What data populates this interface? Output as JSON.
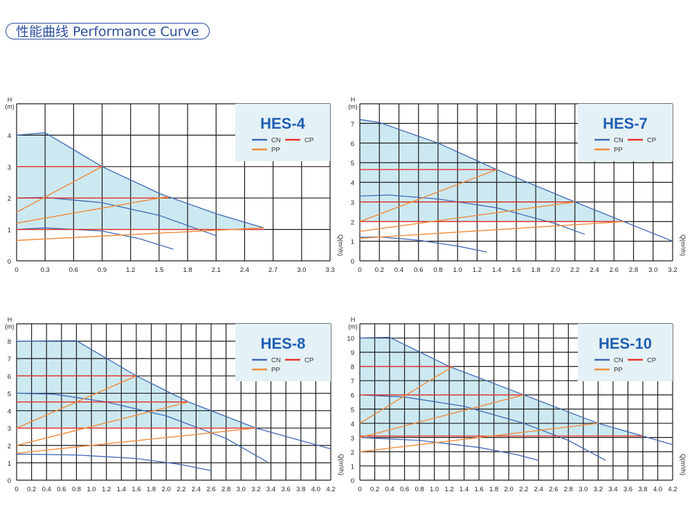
{
  "header": {
    "title": "性能曲线 Performance Curve"
  },
  "colors": {
    "CN": "#3f67b5",
    "CP": "#e8342b",
    "PP": "#f08a3a",
    "area": "#bfe3ee",
    "legend_bg": "#e4f1f6",
    "title": "#1f5fb3"
  },
  "chart_data": [
    {
      "type": "line",
      "title": "HES-4",
      "xlabel": "Q(m³/h)",
      "ylabel": "H (m)",
      "xlim": [
        0,
        3.3
      ],
      "ylim": [
        0,
        5
      ],
      "xticks": [
        "0",
        "0.3",
        "0.6",
        "0.9",
        "1.2",
        "1.5",
        "1.8",
        "2.1",
        "2.4",
        "2.7",
        "3.0",
        "3.3"
      ],
      "yticks": [
        "0",
        "1",
        "2",
        "3",
        "4"
      ],
      "legend": [
        "CN",
        "CP",
        "PP"
      ],
      "legend_position": "top-right",
      "grid": true,
      "series": [
        {
          "name": "CN",
          "x": [
            0,
            0.3,
            0.9,
            1.5,
            2.1,
            2.6
          ],
          "y": [
            4,
            4.08,
            3,
            2.15,
            1.5,
            1.05
          ]
        },
        {
          "name": "CN",
          "x": [
            0,
            0.3,
            0.9,
            1.5,
            2.1
          ],
          "y": [
            2,
            2.02,
            1.85,
            1.45,
            0.8
          ]
        },
        {
          "name": "CN",
          "x": [
            0,
            0.3,
            0.9,
            1.3,
            1.65
          ],
          "y": [
            1,
            1.05,
            0.95,
            0.7,
            0.37
          ]
        },
        {
          "name": "CP",
          "x": [
            0,
            0.9
          ],
          "y": [
            3,
            3
          ]
        },
        {
          "name": "CP",
          "x": [
            0,
            1.6
          ],
          "y": [
            2,
            2
          ]
        },
        {
          "name": "CP",
          "x": [
            0,
            2.6
          ],
          "y": [
            1,
            1
          ]
        },
        {
          "name": "PP",
          "x": [
            0,
            0.9
          ],
          "y": [
            1.55,
            3
          ]
        },
        {
          "name": "PP",
          "x": [
            0,
            1.6
          ],
          "y": [
            1.2,
            2.05
          ]
        },
        {
          "name": "PP",
          "x": [
            0,
            2.6
          ],
          "y": [
            0.65,
            1.05
          ]
        }
      ]
    },
    {
      "type": "line",
      "title": "HES-7",
      "xlabel": "Q(m³/h)",
      "ylabel": "H (m)",
      "xlim": [
        0,
        3.2
      ],
      "ylim": [
        0,
        8
      ],
      "xticks": [
        "0",
        "0.2",
        "0.4",
        "0.6",
        "0.8",
        "1.0",
        "1.2",
        "1.4",
        "1.6",
        "1.8",
        "2.0",
        "2.2",
        "2.4",
        "2.6",
        "2.8",
        "3.0",
        "3.2"
      ],
      "yticks": [
        "0",
        "1",
        "2",
        "3",
        "4",
        "5",
        "6",
        "7"
      ],
      "legend": [
        "CN",
        "CP",
        "PP"
      ],
      "legend_position": "top-right",
      "grid": true,
      "series": [
        {
          "name": "CN",
          "x": [
            0,
            0.2,
            0.8,
            1.4,
            2.2,
            2.7,
            3.2
          ],
          "y": [
            7.2,
            7.05,
            6,
            4.65,
            3,
            2,
            1
          ]
        },
        {
          "name": "CN",
          "x": [
            0,
            0.3,
            0.8,
            1.4,
            2.0,
            2.3
          ],
          "y": [
            3.3,
            3.35,
            3.15,
            2.7,
            1.9,
            1.35
          ]
        },
        {
          "name": "CN",
          "x": [
            0,
            0.2,
            0.6,
            1.0,
            1.3
          ],
          "y": [
            1.2,
            1.22,
            1.05,
            0.75,
            0.45
          ]
        },
        {
          "name": "CP",
          "x": [
            0,
            1.4
          ],
          "y": [
            4.65,
            4.65
          ]
        },
        {
          "name": "CP",
          "x": [
            0,
            2.2
          ],
          "y": [
            3,
            3
          ]
        },
        {
          "name": "CP",
          "x": [
            0,
            2.7
          ],
          "y": [
            2,
            2
          ]
        },
        {
          "name": "PP",
          "x": [
            0,
            1.4
          ],
          "y": [
            2,
            4.65
          ]
        },
        {
          "name": "PP",
          "x": [
            0,
            2.2
          ],
          "y": [
            1.5,
            3
          ]
        },
        {
          "name": "PP",
          "x": [
            0,
            2.7
          ],
          "y": [
            1.15,
            2
          ]
        }
      ]
    },
    {
      "type": "line",
      "title": "HES-8",
      "xlabel": "Q(m³/h)",
      "ylabel": "H (m)",
      "xlim": [
        0,
        4.2
      ],
      "ylim": [
        0,
        9
      ],
      "xticks": [
        "0",
        "0.2",
        "0.4",
        "0.6",
        "0.8",
        "1.0",
        "1.2",
        "1.4",
        "1.6",
        "1.8",
        "2.0",
        "2.2",
        "2.4",
        "2.6",
        "2.8",
        "3.0",
        "3.2",
        "3.4",
        "3.6",
        "3.8",
        "4.0",
        "4.2"
      ],
      "yticks": [
        "0",
        "1",
        "2",
        "3",
        "4",
        "5",
        "6",
        "7",
        "8"
      ],
      "legend": [
        "CN",
        "CP",
        "PP"
      ],
      "legend_position": "top-right",
      "grid": true,
      "series": [
        {
          "name": "CN",
          "x": [
            0,
            0.8,
            1.6,
            2.3,
            3.2,
            4.2
          ],
          "y": [
            8,
            8.03,
            6,
            4.5,
            3,
            1.8
          ]
        },
        {
          "name": "CN",
          "x": [
            0,
            0.5,
            1.2,
            2.0,
            2.8,
            3.35
          ],
          "y": [
            5,
            4.95,
            4.5,
            3.7,
            2.4,
            1.05
          ]
        },
        {
          "name": "CN",
          "x": [
            0,
            0.8,
            1.6,
            2.2,
            2.6
          ],
          "y": [
            1.5,
            1.45,
            1.25,
            0.9,
            0.55
          ]
        },
        {
          "name": "CP",
          "x": [
            0,
            1.6
          ],
          "y": [
            6,
            6
          ]
        },
        {
          "name": "CP",
          "x": [
            0,
            2.3
          ],
          "y": [
            4.5,
            4.5
          ]
        },
        {
          "name": "CP",
          "x": [
            0,
            3.2
          ],
          "y": [
            3,
            3
          ]
        },
        {
          "name": "PP",
          "x": [
            0,
            1.6
          ],
          "y": [
            3,
            6
          ]
        },
        {
          "name": "PP",
          "x": [
            0,
            2.3
          ],
          "y": [
            2,
            4.5
          ]
        },
        {
          "name": "PP",
          "x": [
            0,
            3.2
          ],
          "y": [
            1.55,
            3
          ]
        }
      ]
    },
    {
      "type": "line",
      "title": "HES-10",
      "xlabel": "Q(m³/h)",
      "ylabel": "H (m)",
      "xlim": [
        0,
        4.2
      ],
      "ylim": [
        0,
        11
      ],
      "xticks": [
        "0",
        "0.2",
        "0.4",
        "0.6",
        "0.8",
        "1.0",
        "1.2",
        "1.4",
        "1.6",
        "1.8",
        "2.0",
        "2.2",
        "2.4",
        "2.6",
        "2.8",
        "3.0",
        "3.2",
        "3.4",
        "3.6",
        "3.8",
        "4.0",
        "4.2"
      ],
      "yticks": [
        "0",
        "1",
        "2",
        "3",
        "4",
        "5",
        "6",
        "7",
        "8",
        "9",
        "10"
      ],
      "legend": [
        "CN",
        "CP",
        "PP"
      ],
      "legend_position": "top-right",
      "grid": true,
      "series": [
        {
          "name": "CN",
          "x": [
            0,
            0.4,
            1.2,
            2.2,
            3.2,
            4.2
          ],
          "y": [
            10,
            10.05,
            8,
            6,
            4,
            2.5
          ]
        },
        {
          "name": "CN",
          "x": [
            0,
            0.6,
            1.4,
            2.2,
            2.8,
            3.3
          ],
          "y": [
            6,
            5.85,
            5.2,
            4,
            2.8,
            1.4
          ]
        },
        {
          "name": "CN",
          "x": [
            0,
            0.8,
            1.6,
            2.1,
            2.4
          ],
          "y": [
            3,
            2.8,
            2.3,
            1.8,
            1.4
          ]
        },
        {
          "name": "CP",
          "x": [
            0,
            1.25
          ],
          "y": [
            8,
            8
          ]
        },
        {
          "name": "CP",
          "x": [
            0,
            2.2
          ],
          "y": [
            6,
            6
          ]
        },
        {
          "name": "CP",
          "x": [
            0,
            3.8
          ],
          "y": [
            3.1,
            3.1
          ]
        },
        {
          "name": "PP",
          "x": [
            0,
            1.25
          ],
          "y": [
            4,
            8
          ]
        },
        {
          "name": "PP",
          "x": [
            0,
            2.2
          ],
          "y": [
            3,
            6
          ]
        },
        {
          "name": "PP",
          "x": [
            0,
            3.2
          ],
          "y": [
            2,
            4
          ]
        }
      ]
    }
  ]
}
